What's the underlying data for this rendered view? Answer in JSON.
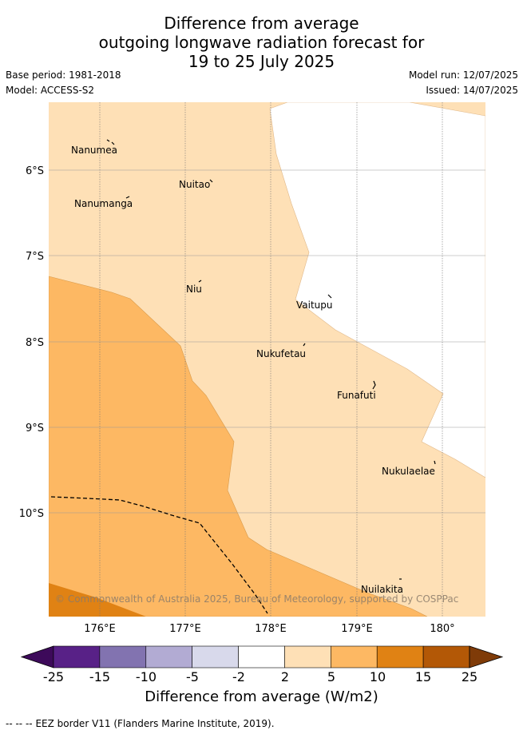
{
  "title": {
    "line1": "Difference from average",
    "line2": "outgoing longwave radiation forecast for",
    "line3": "19 to 25 July 2025"
  },
  "meta": {
    "base_period": "Base period: 1981-2018",
    "model": "Model: ACCESS-S2",
    "model_run": "Model run: 12/07/2025",
    "issued": "Issued: 14/07/2025"
  },
  "map": {
    "lat_ticks": [
      "6°S",
      "7°S",
      "8°S",
      "9°S",
      "10°S"
    ],
    "lon_ticks": [
      "176°E",
      "177°E",
      "178°E",
      "179°E",
      "180°"
    ],
    "places": [
      "Nanumea",
      "Nuitao",
      "Nanumanga",
      "Niu",
      "Vaitupu",
      "Nukufetau",
      "Funafuti",
      "Nukulaelae",
      "Nuilakita"
    ],
    "copyright": "© Commonwealth of Australia 2025, Bureau of Meteorology, supported by COSPPac"
  },
  "colorbar": {
    "ticks": [
      "-25",
      "-15",
      "-10",
      "-5",
      "-2",
      "2",
      "5",
      "10",
      "15",
      "25"
    ],
    "colors": [
      "#3d0a5a",
      "#582187",
      "#8273b0",
      "#b2abd3",
      "#d8d9eb",
      "#ffffff",
      "#fee0b6",
      "#fdb863",
      "#e08214",
      "#b35806",
      "#7f3b08"
    ],
    "title": "Difference from average (W/m2)"
  },
  "legend_line": {
    "marker": "-- -- --",
    "label": "EEZ border V11 (Flanders Marine Institute, 2019)."
  }
}
